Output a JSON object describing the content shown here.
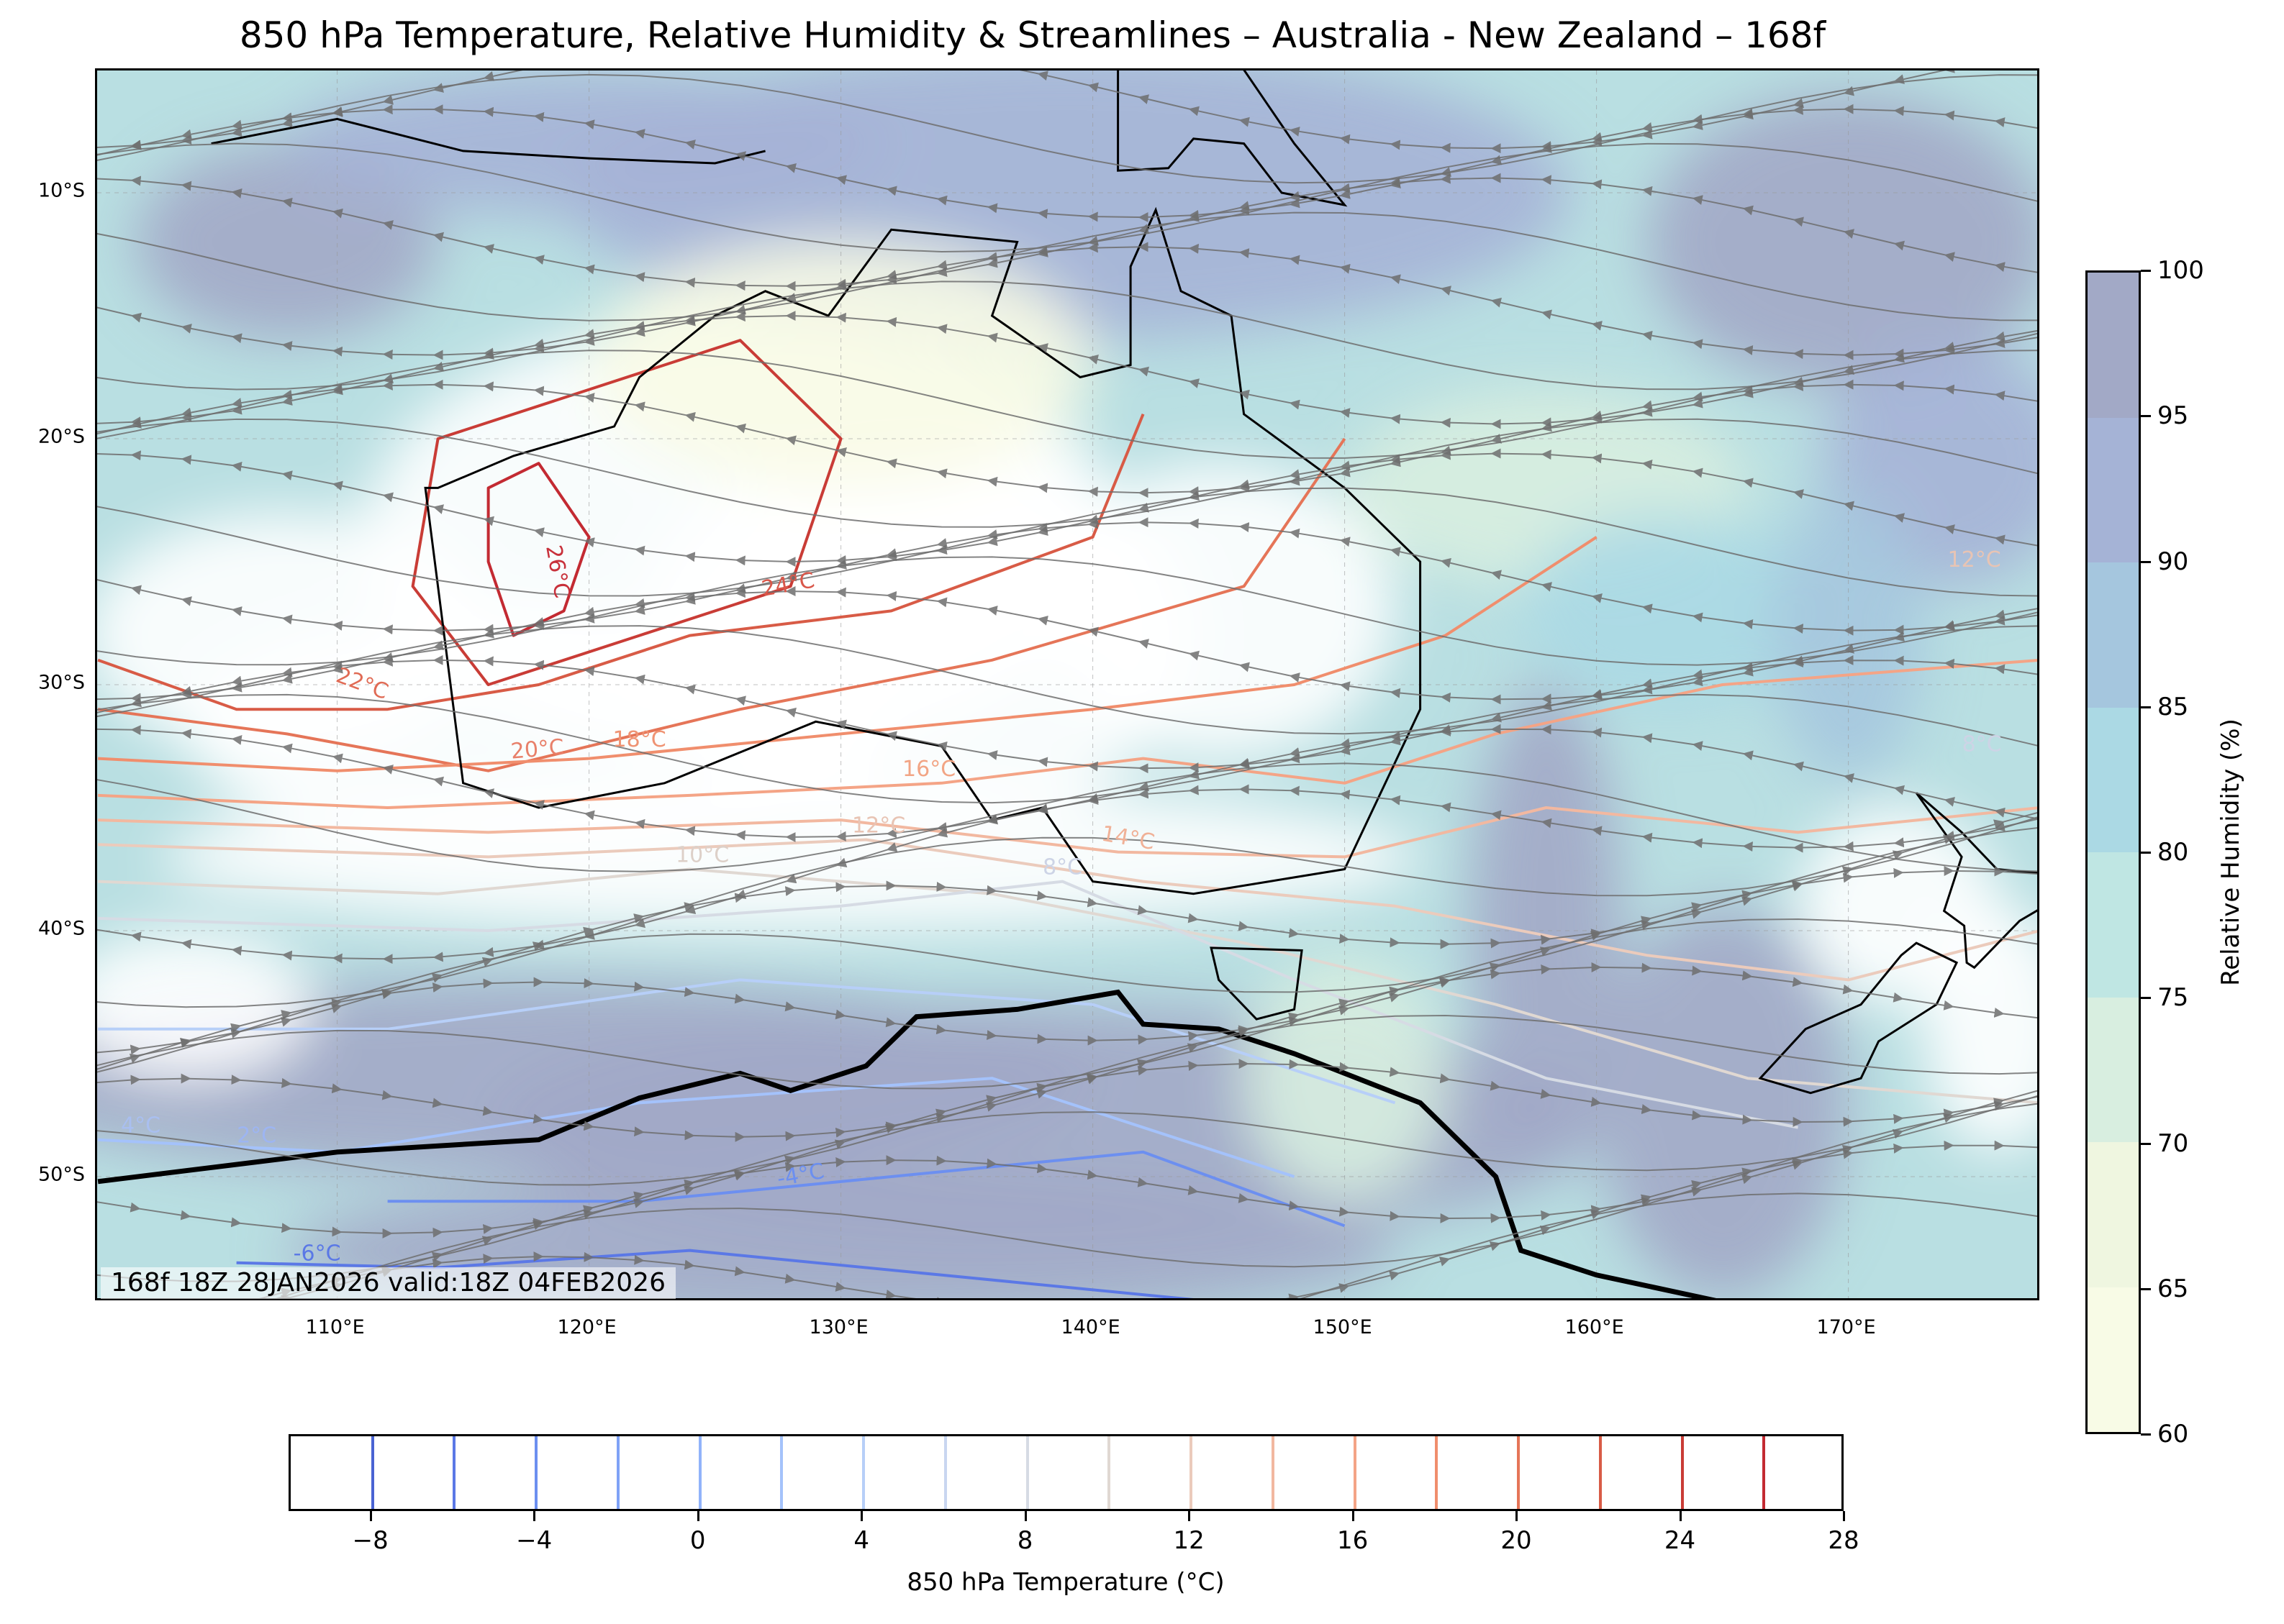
{
  "title": "850 hPa Temperature, Relative Humidity & Streamlines – Australia - New Zealand – 168f",
  "info_box": "168f 18Z 28JAN2026 valid:18Z 04FEB2026",
  "map": {
    "lon_range": [
      100.5,
      177.6
    ],
    "lat_range": [
      -55.1,
      -5.0
    ],
    "lat_ticks": [
      {
        "lat": -10,
        "label": "10°S"
      },
      {
        "lat": -20,
        "label": "20°S"
      },
      {
        "lat": -30,
        "label": "30°S"
      },
      {
        "lat": -40,
        "label": "40°S"
      },
      {
        "lat": -50,
        "label": "50°S"
      }
    ],
    "lon_ticks": [
      {
        "lon": 110,
        "label": "110°E"
      },
      {
        "lon": 120,
        "label": "120°E"
      },
      {
        "lon": 130,
        "label": "130°E"
      },
      {
        "lon": 140,
        "label": "140°E"
      },
      {
        "lon": 150,
        "label": "150°E"
      },
      {
        "lon": 160,
        "label": "160°E"
      },
      {
        "lon": 170,
        "label": "170°E"
      }
    ],
    "contour_labels": [
      {
        "text": "26°C",
        "lon": 118.2,
        "lat": -25.5,
        "color": "#c8303a",
        "rot": 80
      },
      {
        "text": "24°C",
        "lon": 128,
        "lat": -26.5,
        "color": "#d9574a",
        "rot": -10
      },
      {
        "text": "22°C",
        "lon": 110.8,
        "lat": -30.5,
        "color": "#e06b55",
        "rot": 20
      },
      {
        "text": "20°C",
        "lon": 118,
        "lat": -33.2,
        "color": "#e8806a",
        "rot": -5
      },
      {
        "text": "18°C",
        "lon": 122,
        "lat": -32.8,
        "color": "#ef9373",
        "rot": 0
      },
      {
        "text": "16°C",
        "lon": 133.5,
        "lat": -34,
        "color": "#f2a585",
        "rot": 0
      },
      {
        "text": "14°C",
        "lon": 141.3,
        "lat": -36.8,
        "color": "#f0b197",
        "rot": 10
      },
      {
        "text": "12°C",
        "lon": 131.5,
        "lat": -36.3,
        "color": "#e8c4b4",
        "rot": 0
      },
      {
        "text": "10°C",
        "lon": 124.5,
        "lat": -37.5,
        "color": "#ddd0c8",
        "rot": 0
      },
      {
        "text": "8°C",
        "lon": 138.8,
        "lat": -38,
        "color": "#cdd4e6",
        "rot": 0
      },
      {
        "text": "12°C",
        "lon": 175,
        "lat": -25.5,
        "color": "#e8c4b4",
        "rot": 0
      },
      {
        "text": "8°C",
        "lon": 175.3,
        "lat": -33,
        "color": "#cdd4e6",
        "rot": 0
      },
      {
        "text": "4°C",
        "lon": 102.2,
        "lat": -48.5,
        "color": "#a9bff0",
        "rot": 0
      },
      {
        "text": "2°C",
        "lon": 106.8,
        "lat": -48.9,
        "color": "#9db5f2",
        "rot": 0
      },
      {
        "text": "-4°C",
        "lon": 128.5,
        "lat": -50.5,
        "color": "#6c8ff0",
        "rot": -10
      },
      {
        "text": "-6°C",
        "lon": 109.2,
        "lat": -53.7,
        "color": "#5a78e6",
        "rot": 0
      }
    ]
  },
  "rh_colorbar": {
    "title": "Relative Humidity (%)",
    "ticks": [
      "60",
      "65",
      "70",
      "75",
      "80",
      "85",
      "90",
      "95",
      "100"
    ],
    "colors": [
      "#f8fbe6",
      "#eff6e0",
      "#d8eee0",
      "#bfe6e3",
      "#abd9e4",
      "#a5c6de",
      "#a5b3d6",
      "#a2a9c6"
    ]
  },
  "temp_colorbar": {
    "title": "850 hPa Temperature (°C)",
    "range": [
      -10,
      28
    ],
    "ticks": [
      "-8",
      "-4",
      "0",
      "4",
      "8",
      "12",
      "16",
      "20",
      "24",
      "28"
    ],
    "levels": [
      -8,
      -6,
      -4,
      -2,
      0,
      2,
      4,
      6,
      8,
      10,
      12,
      14,
      16,
      18,
      20,
      22,
      24,
      26
    ],
    "colors": [
      "#4a63d3",
      "#5b78e6",
      "#6c8ff0",
      "#7fa2f6",
      "#91b3fa",
      "#a4c2fb",
      "#b7cff8",
      "#c9d6f0",
      "#d6dbe4",
      "#e0d8d2",
      "#ebcbbc",
      "#f2b8a0",
      "#f4a486",
      "#f08e6d",
      "#e57558",
      "#d85b46",
      "#c93c36",
      "#c32a32"
    ]
  }
}
